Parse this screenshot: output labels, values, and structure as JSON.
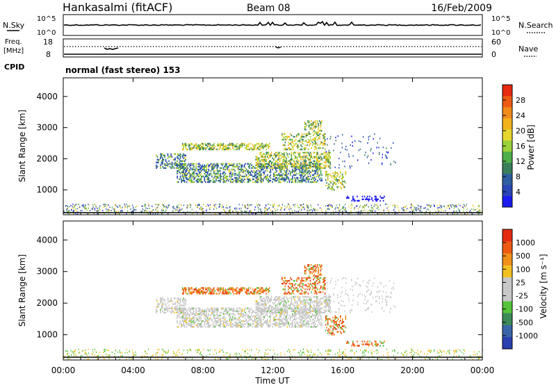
{
  "header": {
    "site": "Hankasalmi (fitACF)",
    "beam": "Beam 08",
    "date": "16/Feb/2009"
  },
  "nsky_panel": {
    "left_label": "N.Sky",
    "right_label": "N.Search",
    "ticks": [
      "10^5",
      "10^0"
    ]
  },
  "freq_panel": {
    "left_label_line1": "Freq.",
    "left_label_line2": "[MHz]",
    "left_ticks": [
      "18",
      "8"
    ],
    "right_ticks": [
      "60",
      "0"
    ],
    "right_label": "Nave"
  },
  "cpid": {
    "label": "CPID",
    "value": "normal (fast stereo) 153"
  },
  "x_axis": {
    "label": "Time UT",
    "ticks": [
      "00:00",
      "04:00",
      "08:00",
      "12:00",
      "16:00",
      "20:00",
      "00:00"
    ]
  },
  "chart_data": [
    {
      "type": "heatmap",
      "name": "power",
      "ylabel": "Slant Range [km]",
      "yticks": [
        "4000",
        "3000",
        "2000",
        "1000"
      ],
      "yrange_km": [
        200,
        4600
      ],
      "xrange_hours": [
        0,
        24
      ],
      "colorbar": {
        "label": "Power [dB]",
        "ticks": [
          "28",
          "24",
          "20",
          "16",
          "12",
          "8",
          "4"
        ],
        "colors": [
          "#1c1cf0",
          "#2a46b8",
          "#2f5fa0",
          "#3a7f5a",
          "#4fae4a",
          "#9bd13a",
          "#e6d62e",
          "#f2b21e",
          "#f08a1a",
          "#ee5a14",
          "#e82a10"
        ]
      }
    },
    {
      "type": "heatmap",
      "name": "velocity",
      "ylabel": "Slant Range [km]",
      "yticks": [
        "4000",
        "3000",
        "2000",
        "1000"
      ],
      "yrange_km": [
        200,
        4600
      ],
      "xrange_hours": [
        0,
        24
      ],
      "colorbar": {
        "label": "Velocity [m s⁻¹]",
        "ticks": [
          "1000",
          "500",
          "100",
          "25",
          "-25",
          "-100",
          "-500",
          "-1000"
        ],
        "colors": [
          "#2a3fb0",
          "#3a64a8",
          "#3c8a58",
          "#56c23c",
          "#c8c8c8",
          "#c8c8c8",
          "#f2c020",
          "#f0901a",
          "#ee5a14",
          "#e62a12"
        ]
      }
    }
  ]
}
